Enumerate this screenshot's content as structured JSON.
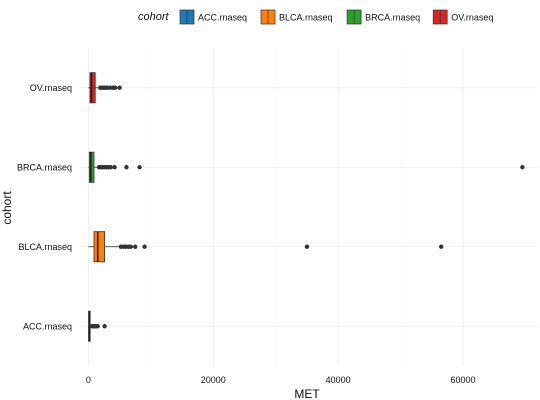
{
  "chart_data": {
    "type": "boxplot",
    "orientation": "horizontal",
    "xlabel": "MET",
    "ylabel": "cohort",
    "xlim": [
      -1500,
      72000
    ],
    "xticks": [
      0,
      20000,
      40000,
      60000
    ],
    "xtick_labels": [
      "0",
      "20000",
      "40000",
      "60000"
    ],
    "grid": true,
    "legend": {
      "title": "cohort",
      "placement": "top",
      "entries": [
        "ACC.rnaseq",
        "BLCA.rnaseq",
        "BRCA.rnaseq",
        "OV.rnaseq"
      ]
    },
    "categories": [
      "ACC.rnaseq",
      "BLCA.rnaseq",
      "BRCA.rnaseq",
      "OV.rnaseq"
    ],
    "series": [
      {
        "name": "ACC.rnaseq",
        "color": "#1f77b4",
        "min": 0,
        "q1": 50,
        "median": 120,
        "q3": 250,
        "whisker_high": 400,
        "outliers": [
          600,
          800,
          1000,
          1200,
          1500,
          2600
        ]
      },
      {
        "name": "BLCA.rnaseq",
        "color": "#ff7f0e",
        "min": 0,
        "q1": 900,
        "median": 1500,
        "q3": 2600,
        "whisker_high": 5000,
        "outliers": [
          5200,
          5600,
          6000,
          6400,
          6800,
          7500,
          9000,
          35000,
          56500
        ]
      },
      {
        "name": "BRCA.rnaseq",
        "color": "#2ca02c",
        "min": 0,
        "q1": 150,
        "median": 400,
        "q3": 900,
        "whisker_high": 1500,
        "outliers": [
          1700,
          2000,
          2300,
          2600,
          2900,
          3200,
          3600,
          4200,
          6100,
          8200,
          69500
        ]
      },
      {
        "name": "OV.rnaseq",
        "color": "#d62728",
        "min": 0,
        "q1": 250,
        "median": 500,
        "q3": 1100,
        "whisker_high": 1700,
        "outliers": [
          1900,
          2200,
          2500,
          2800,
          3100,
          3500,
          4000,
          4300,
          5000
        ]
      }
    ]
  }
}
